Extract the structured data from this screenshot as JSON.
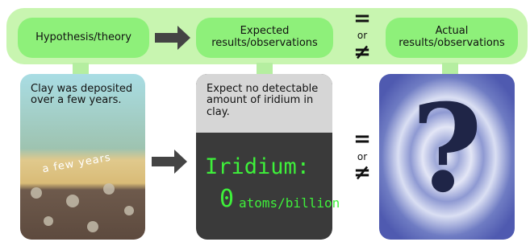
{
  "top_bar": {
    "hypothesis": "Hypothesis/theory",
    "expected": "Expected results/observations",
    "equals": "=",
    "or": "or",
    "not_equal": "≠",
    "actual": "Actual results/observations"
  },
  "panels": {
    "clay": {
      "text": "Clay was deposited over a few years.",
      "layer_label": "a few years"
    },
    "expected": {
      "text": "Expect no detectable amount of iridium in clay.",
      "iridium_label": "Iridium:",
      "iridium_value": 0,
      "iridium_unit": "atoms/billion"
    },
    "comparison": {
      "equals": "=",
      "or": "or",
      "not_equal": "≠"
    },
    "actual": {
      "symbol": "?"
    }
  }
}
